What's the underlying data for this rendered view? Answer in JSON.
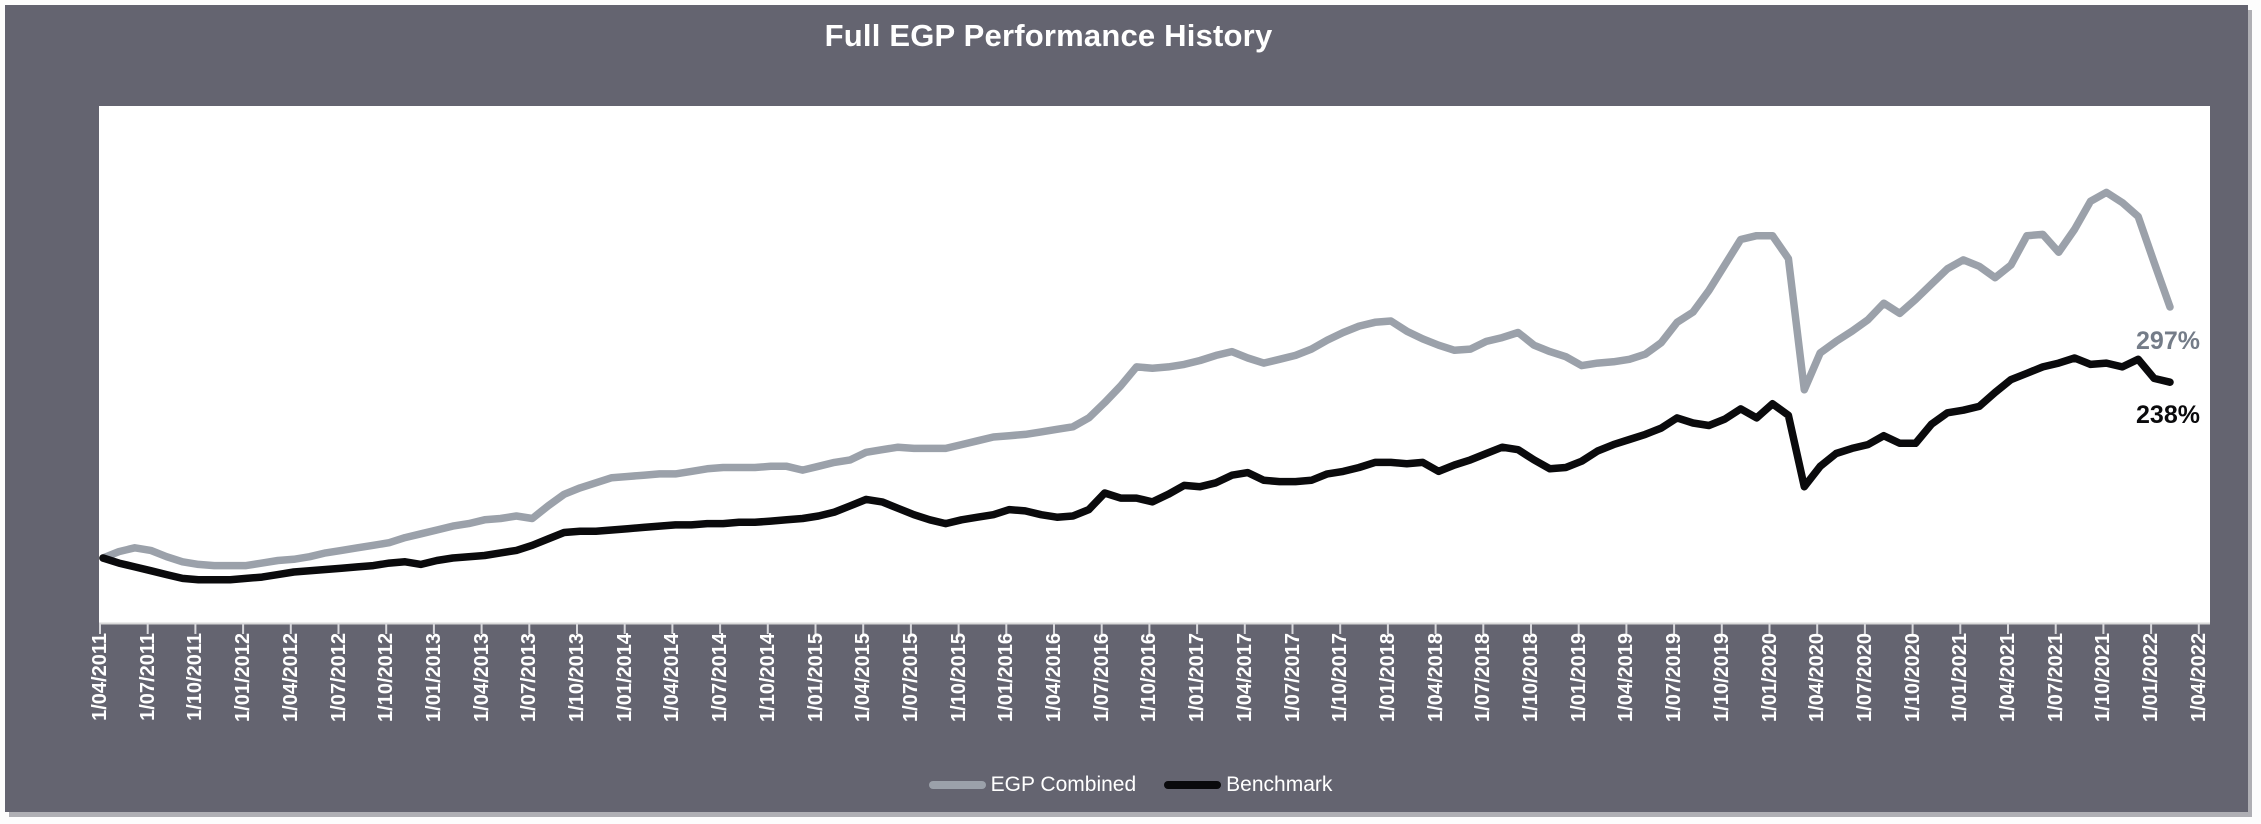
{
  "title": "Full EGP Performance History",
  "colors": {
    "panel_bg": "#646470",
    "plot_bg": "#FFFFFF",
    "title_text": "#FFFFFF",
    "axis_label_text": "#FFFFFF",
    "tick": "#D8D8DC",
    "axis_line": "#D9D9D9",
    "egp_line": "#9BA1AA",
    "benchmark_line": "#0A0A0C",
    "egp_end_label": "#747C88",
    "benchmark_end_label": "#0A0A0C"
  },
  "end_labels": {
    "egp": "297%",
    "benchmark": "238%"
  },
  "legend": {
    "items": [
      {
        "label": "EGP Combined",
        "color": "#9BA1AA"
      },
      {
        "label": "Benchmark",
        "color": "#0A0A0C"
      }
    ]
  },
  "chart_data": {
    "type": "line",
    "title": "Full EGP Performance History",
    "x_start": "1/04/2011",
    "x_end_of_data": "1/02/2022",
    "x_frequency": "monthly data, quarterly tick labels",
    "x_tick_labels": [
      "1/04/2011",
      "1/07/2011",
      "1/10/2011",
      "1/01/2012",
      "1/04/2012",
      "1/07/2012",
      "1/10/2012",
      "1/01/2013",
      "1/04/2013",
      "1/07/2013",
      "1/10/2013",
      "1/01/2014",
      "1/04/2014",
      "1/07/2014",
      "1/10/2014",
      "1/01/2015",
      "1/04/2015",
      "1/07/2015",
      "1/10/2015",
      "1/01/2016",
      "1/04/2016",
      "1/07/2016",
      "1/10/2016",
      "1/01/2017",
      "1/04/2017",
      "1/07/2017",
      "1/10/2017",
      "1/01/2018",
      "1/04/2018",
      "1/07/2018",
      "1/10/2018",
      "1/01/2019",
      "1/04/2019",
      "1/07/2019",
      "1/10/2019",
      "1/01/2020",
      "1/04/2020",
      "1/07/2020",
      "1/10/2020",
      "1/01/2021",
      "1/04/2021",
      "1/07/2021",
      "1/10/2021",
      "1/01/2022",
      "1/04/2022"
    ],
    "y_axis": {
      "visible": false,
      "unit": "%",
      "start_value": 100,
      "ylim": [
        49,
        453
      ]
    },
    "grid": false,
    "legend_position": "bottom",
    "series": [
      {
        "name": "EGP Combined",
        "color": "#9BA1AA",
        "end_label": "297%",
        "values": [
          100,
          105,
          108,
          106,
          101,
          97,
          95,
          94,
          94,
          94,
          96,
          98,
          99,
          101,
          104,
          106,
          108,
          110,
          112,
          116,
          119,
          122,
          125,
          127,
          130,
          131,
          133,
          131,
          141,
          150,
          155,
          159,
          163,
          164,
          165,
          166,
          166,
          168,
          170,
          171,
          171,
          171,
          172,
          172,
          169,
          172,
          175,
          177,
          183,
          185,
          187,
          186,
          186,
          186,
          189,
          192,
          195,
          196,
          197,
          199,
          201,
          203,
          210,
          222,
          235,
          250,
          249,
          250,
          252,
          255,
          259,
          262,
          257,
          253,
          256,
          259,
          264,
          271,
          277,
          282,
          285,
          286,
          278,
          272,
          267,
          263,
          264,
          270,
          273,
          277,
          267,
          262,
          258,
          251,
          253,
          254,
          256,
          260,
          269,
          285,
          293,
          310,
          330,
          350,
          353,
          353,
          335,
          232,
          261,
          270,
          278,
          287,
          300,
          292,
          303,
          315,
          327,
          334,
          329,
          320,
          330,
          353,
          354,
          340,
          358,
          380,
          387,
          379,
          368,
          332,
          297
        ]
      },
      {
        "name": "Benchmark",
        "color": "#0A0A0C",
        "end_label": "238%",
        "values": [
          100,
          96,
          93,
          90,
          87,
          84,
          83,
          83,
          83,
          84,
          85,
          87,
          89,
          90,
          91,
          92,
          93,
          94,
          96,
          97,
          95,
          98,
          100,
          101,
          102,
          104,
          106,
          110,
          115,
          120,
          121,
          121,
          122,
          123,
          124,
          125,
          126,
          126,
          127,
          127,
          128,
          128,
          129,
          130,
          131,
          133,
          136,
          141,
          146,
          144,
          139,
          134,
          130,
          127,
          130,
          132,
          134,
          138,
          137,
          134,
          132,
          133,
          138,
          151,
          147,
          147,
          144,
          150,
          157,
          156,
          159,
          165,
          167,
          161,
          160,
          160,
          161,
          166,
          168,
          171,
          175,
          175,
          174,
          175,
          168,
          173,
          177,
          182,
          187,
          185,
          177,
          170,
          171,
          176,
          184,
          189,
          193,
          197,
          202,
          210,
          206,
          204,
          209,
          217,
          210,
          221,
          212,
          156,
          172,
          182,
          186,
          189,
          196,
          190,
          190,
          205,
          214,
          216,
          219,
          230,
          240,
          245,
          250,
          253,
          257,
          252,
          253,
          250,
          256,
          241,
          238
        ]
      }
    ]
  }
}
